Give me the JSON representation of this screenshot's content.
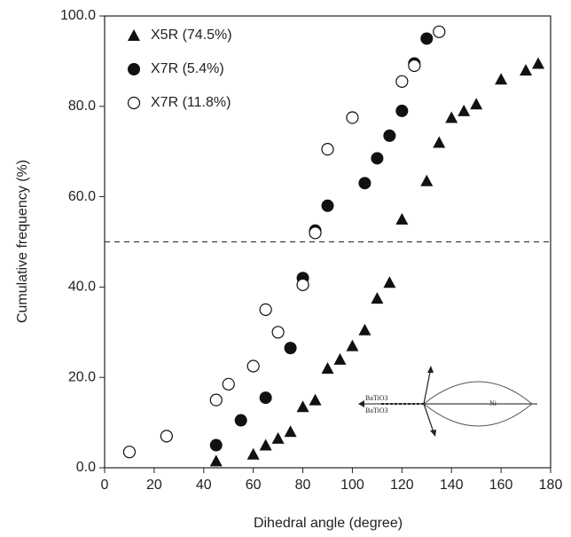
{
  "chart_data": {
    "type": "scatter",
    "x_label": "Dihedral angle (degree)",
    "y_label": "Cumulative frequency (%)",
    "xlim": [
      0,
      180
    ],
    "xticks": [
      0,
      20,
      40,
      60,
      80,
      100,
      120,
      140,
      160,
      180
    ],
    "ylim": [
      0,
      100
    ],
    "yticks": [
      {
        "value": 0,
        "label": "0.0"
      },
      {
        "value": 20,
        "label": "20.0"
      },
      {
        "value": 40,
        "label": "40.0"
      },
      {
        "value": 60,
        "label": "60.0"
      },
      {
        "value": 80,
        "label": "80.0"
      },
      {
        "value": 100,
        "label": "100.0"
      }
    ],
    "hline": 50,
    "legend": "upper left",
    "series": [
      {
        "name": "X5R (74.5%)",
        "marker": "triangle",
        "color": "#111111",
        "x": [
          45,
          60,
          65,
          70,
          75,
          80,
          85,
          90,
          95,
          100,
          105,
          110,
          115,
          120,
          130,
          135,
          140,
          145,
          150,
          160,
          170,
          175
        ],
        "values": [
          1.5,
          3,
          5,
          6.5,
          8,
          13.5,
          15,
          22,
          24,
          27,
          30.5,
          37.5,
          41,
          55,
          63.5,
          72,
          77.5,
          79,
          80.5,
          86,
          88,
          89.5
        ]
      },
      {
        "name": "X7R (5.4%)",
        "marker": "filled-circle",
        "color": "#111111",
        "x": [
          45,
          55,
          65,
          75,
          80,
          85,
          90,
          105,
          110,
          115,
          120,
          125,
          130
        ],
        "values": [
          5,
          10.5,
          15.5,
          26.5,
          42,
          52.5,
          58,
          63,
          68.5,
          73.5,
          79,
          89.5,
          95
        ]
      },
      {
        "name": "X7R (11.8%)",
        "marker": "open-circle",
        "color": "#111111",
        "x": [
          10,
          25,
          45,
          50,
          60,
          65,
          70,
          80,
          85,
          90,
          100,
          120,
          125,
          135
        ],
        "values": [
          3.5,
          7,
          15,
          18.5,
          22.5,
          35,
          30,
          40.5,
          52,
          70.5,
          77.5,
          85.5,
          89,
          96.5
        ]
      }
    ],
    "inset_labels": [
      "BaTiO3",
      "BaTiO3",
      "Ni"
    ]
  }
}
